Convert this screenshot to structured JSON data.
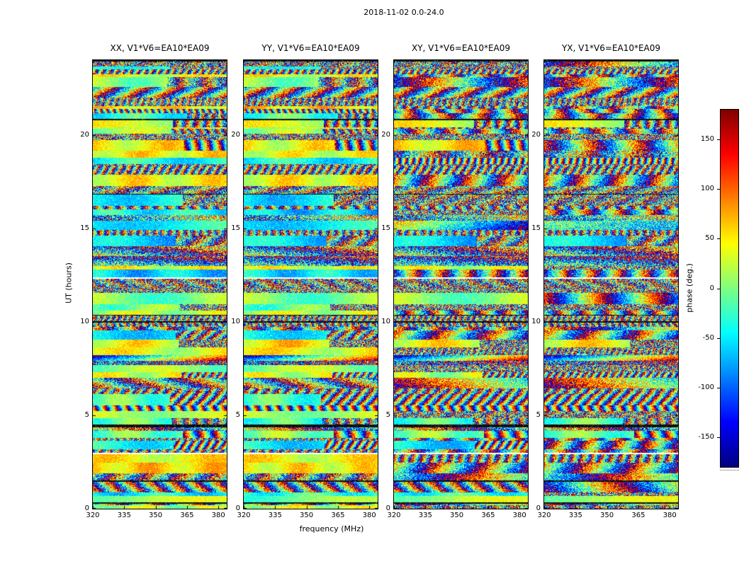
{
  "chart_data": {
    "type": "heatmap",
    "title": "2018-11-02 0.0-24.0",
    "xlabel": "frequency (MHz)",
    "ylabel": "UT (hours)",
    "panels": [
      {
        "label": "XX",
        "title": "XX, V1*V6=EA10*EA09"
      },
      {
        "label": "YY",
        "title": "YY, V1*V6=EA10*EA09"
      },
      {
        "label": "XY",
        "title": "XY, V1*V6=EA10*EA09"
      },
      {
        "label": "YX",
        "title": "YX, V1*V6=EA10*EA09"
      }
    ],
    "x_range": [
      320,
      384
    ],
    "x_ticks": [
      320,
      335,
      350,
      365,
      380
    ],
    "y_range": [
      0,
      24
    ],
    "y_ticks": [
      0,
      5,
      10,
      15,
      20
    ],
    "value_range_deg": [
      -180,
      180
    ],
    "colorbar": {
      "label": "phase (deg.)",
      "ticks": [
        150,
        100,
        50,
        0,
        -50,
        -100,
        -150
      ],
      "range": [
        -180,
        180
      ],
      "colormap": "jet"
    },
    "content_summary": "24-hour phase-vs-frequency waterfall for four polarization products of baseline V1*V6=EA10*EA09. Horizontal scan bands of jet-colormap phase noise separated by thin white time gaps and black rows; XX and YY contain smooth green/yellow coherent bands (phase near 0) that become noisy toward higher frequencies, while XY and YX are mostly incoherent noise with occasional dark-blue biased regions.",
    "render": {
      "seed": 20,
      "coherent_prob": [
        0.55,
        0.55,
        0.1,
        0.07
      ],
      "blue_prob": [
        0.04,
        0.04,
        0.22,
        0.3
      ]
    }
  }
}
